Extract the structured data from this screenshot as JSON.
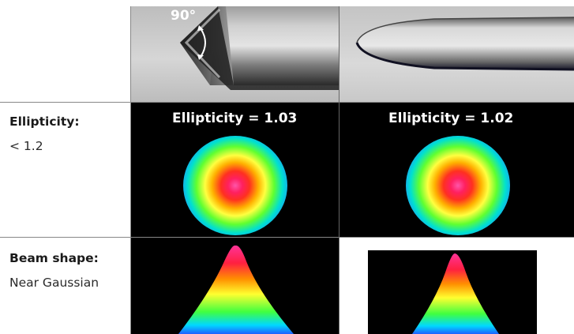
{
  "tip_row": {
    "angle_label": "90°"
  },
  "ellipticity_row": {
    "title": "Ellipticity:",
    "spec": "< 1.2",
    "left_value_label": "Ellipticity = 1.03",
    "right_value_label": "Ellipticity = 1.02"
  },
  "beam_row": {
    "title": "Beam shape:",
    "spec": "Near Gaussian"
  },
  "colors": {
    "divider": "#888888",
    "panel_background": "#000000",
    "fiber_background": "#c9c9c9"
  }
}
